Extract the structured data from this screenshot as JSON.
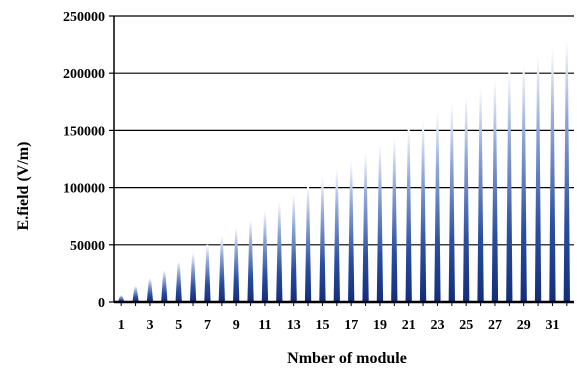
{
  "chart_data": {
    "type": "bar",
    "title": "",
    "xlabel": "Nmber of module",
    "ylabel": "E.field (V/m)",
    "ylim": [
      0,
      250000
    ],
    "yticks": [
      0,
      50000,
      100000,
      150000,
      200000,
      250000
    ],
    "grid": true,
    "x": [
      1,
      2,
      3,
      4,
      5,
      6,
      7,
      8,
      9,
      10,
      11,
      12,
      13,
      14,
      15,
      16,
      17,
      18,
      19,
      20,
      21,
      22,
      23,
      24,
      25,
      26,
      27,
      28,
      29,
      30,
      31,
      32
    ],
    "xtick_labels": [
      "1",
      "3",
      "5",
      "7",
      "9",
      "11",
      "13",
      "15",
      "17",
      "19",
      "21",
      "23",
      "25",
      "27",
      "29",
      "31"
    ],
    "values": [
      6000,
      14000,
      21000,
      28000,
      36000,
      43000,
      50000,
      58000,
      65000,
      72000,
      80000,
      87000,
      94000,
      101000,
      109000,
      116000,
      123000,
      130000,
      137000,
      144000,
      151000,
      158000,
      166000,
      173000,
      180000,
      187000,
      194000,
      201000,
      208000,
      215000,
      222000,
      229000
    ],
    "bar_color": "#1f3f8f"
  }
}
